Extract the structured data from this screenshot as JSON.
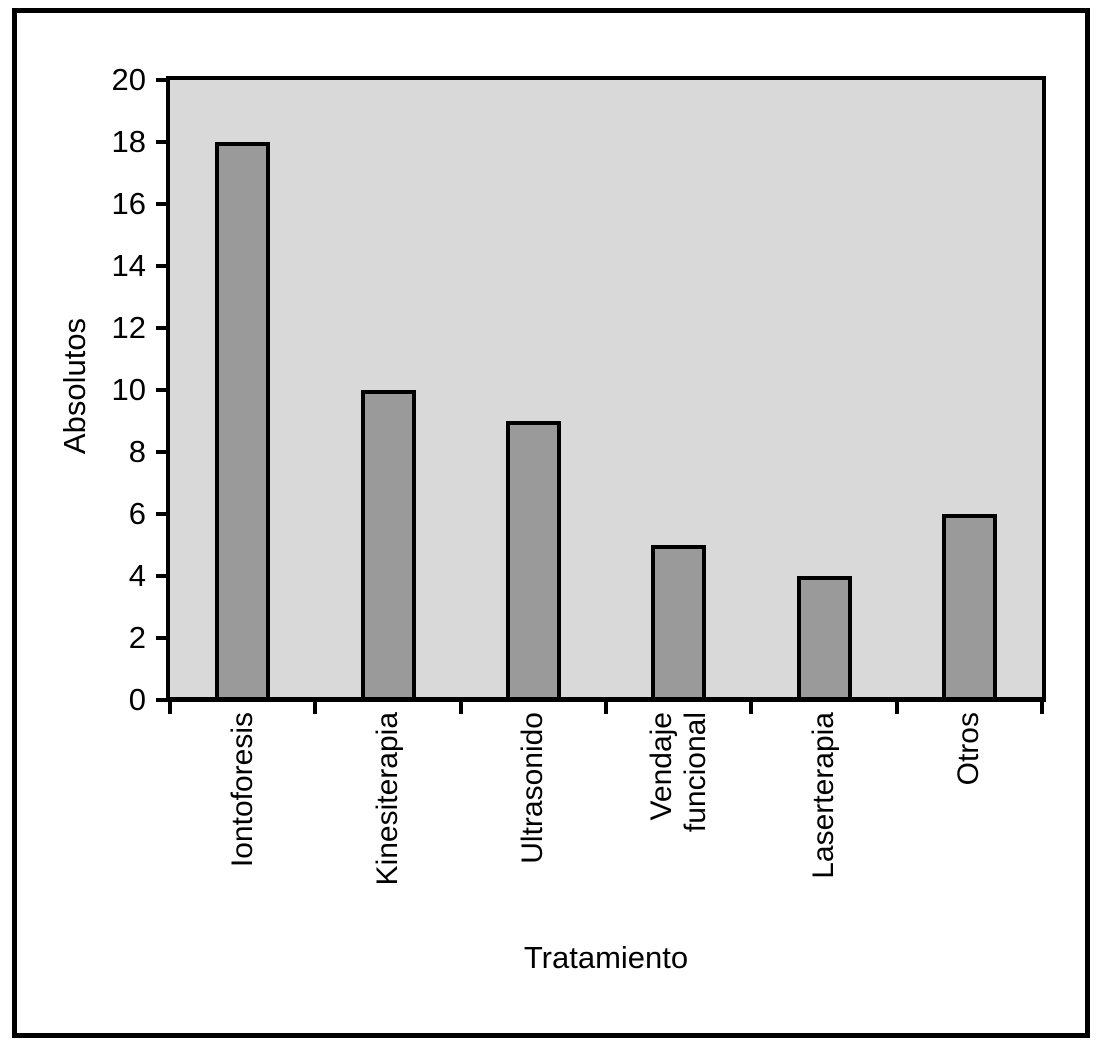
{
  "figure": {
    "background": "#ffffff",
    "frame_border_color": "#000000"
  },
  "chart_data": {
    "type": "bar",
    "title": "",
    "categories": [
      "Iontoforesis",
      "Kinesiterapia",
      "Ultrasonido",
      "Vendaje\nfuncional",
      "Laserterapia",
      "Otros"
    ],
    "values": [
      18,
      10,
      9,
      5,
      4,
      6
    ],
    "xlabel": "Tratamiento",
    "ylabel": "Absolutos",
    "ylim": [
      0,
      20
    ],
    "ytick_step": 2,
    "ytick_labels": [
      "0",
      "2",
      "4",
      "6",
      "8",
      "10",
      "12",
      "14",
      "16",
      "18",
      "20"
    ],
    "grid": false,
    "legend": "none",
    "colors": {
      "bar_fill": "#9a9a9a",
      "bar_border": "#000000",
      "plot_background": "#d9d9d9",
      "axis_color": "#000000"
    }
  }
}
